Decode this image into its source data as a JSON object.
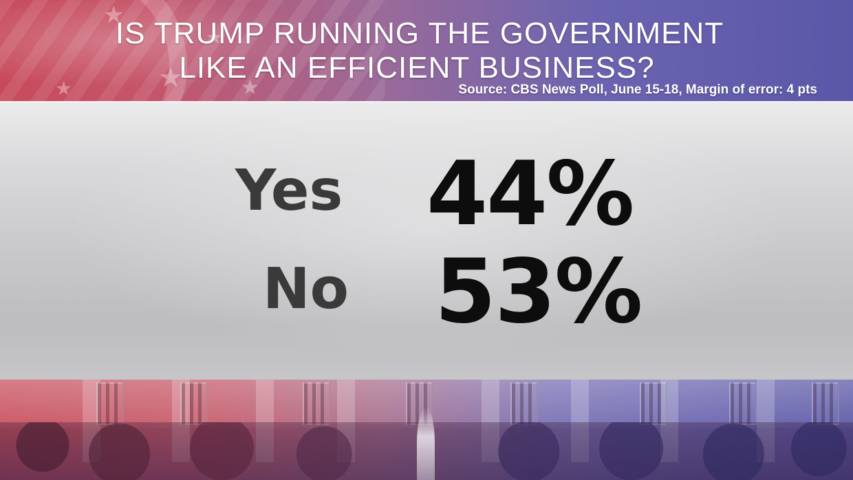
{
  "header": {
    "title_line_1": "IS TRUMP RUNNING THE GOVERNMENT",
    "title_line_2": "LIKE AN EFFICIENT BUSINESS?",
    "source": "Source: CBS News Poll, June 15-18, Margin of error: 4 pts"
  },
  "results": [
    {
      "label": "Yes",
      "value": "44%"
    },
    {
      "label": "No",
      "value": "53%"
    }
  ],
  "colors": {
    "red": "#c74a5a",
    "blue": "#5b57a8",
    "panel": "#d0d0d3",
    "text_dark": "#0d0d0d"
  }
}
